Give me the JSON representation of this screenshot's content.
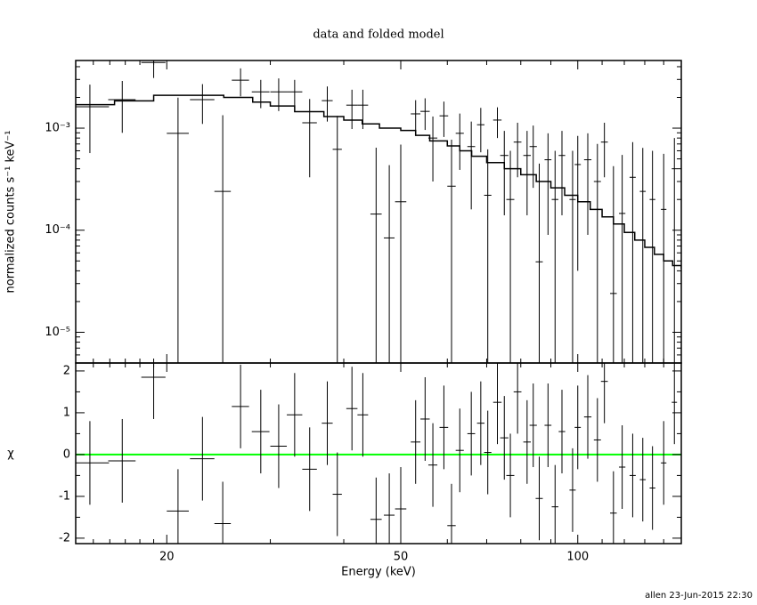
{
  "footer": "allen 23-Jun-2015 22:30",
  "chart_data": [
    {
      "type": "errorbar",
      "title": "data and folded model",
      "ylabel": "normalized counts s⁻¹ keV⁻¹",
      "xscale": "log",
      "yscale": "log",
      "color": "#000000",
      "xlim": [
        14,
        150
      ],
      "ylim": [
        5e-06,
        0.0046
      ],
      "yticks": [
        {
          "value": 1e-05,
          "label": "10⁻⁵"
        },
        {
          "value": 0.0001,
          "label": "10⁻⁴"
        },
        {
          "value": 0.001,
          "label": "10⁻³"
        }
      ],
      "yminorticks": [
        6e-06,
        7e-06,
        8e-06,
        9e-06,
        2e-05,
        3e-05,
        4e-05,
        5e-05,
        6e-05,
        7e-05,
        8e-05,
        9e-05,
        0.0002,
        0.0003,
        0.0004,
        0.0005,
        0.0006,
        0.0007,
        0.0008,
        0.0009,
        0.002,
        0.003,
        0.004
      ],
      "x": [
        14.8,
        16.8,
        19.0,
        20.9,
        23.0,
        24.9,
        26.7,
        28.9,
        31.0,
        33.0,
        35.0,
        37.5,
        39.0,
        41.3,
        43.1,
        45.4,
        47.8,
        50,
        53,
        55,
        56.7,
        59.2,
        61.0,
        63.0,
        65.9,
        68.4,
        70.3,
        73.0,
        75.0,
        76.8,
        79.0,
        82.0,
        84.0,
        86.0,
        89,
        91.5,
        94,
        98,
        100,
        104,
        108,
        111,
        115,
        119,
        124,
        129,
        134,
        140,
        146
      ],
      "xerr": [
        1.15,
        0.9,
        0.9,
        0.9,
        1.1,
        0.8,
        0.9,
        1.0,
        1.0,
        1.0,
        1.0,
        0.8,
        0.7,
        0.9,
        0.9,
        1.0,
        1.0,
        1.1,
        1.0,
        1.0,
        1.0,
        1.0,
        1.0,
        1.0,
        1.0,
        1.0,
        1.0,
        1.2,
        1.2,
        1.2,
        1.2,
        1.2,
        1.2,
        1.2,
        1.2,
        1.2,
        1.2,
        1.2,
        1.2,
        1.5,
        1.5,
        1.5,
        1.5,
        1.5,
        1.5,
        1.5,
        1.5,
        1.5,
        1.5
      ],
      "values": [
        0.00162,
        0.0019,
        0.0044,
        0.00089,
        0.0019,
        0.00024,
        0.00295,
        0.00227,
        0.00227,
        0.00227,
        0.00113,
        0.00186,
        0.00062,
        0.00168,
        0.00168,
        0.000144,
        8.4e-05,
        0.00019,
        0.00138,
        0.00146,
        0.0008,
        0.00132,
        0.00027,
        0.00089,
        0.00066,
        0.00108,
        0.00022,
        0.0012,
        0.00054,
        0.0002,
        0.00073,
        0.00054,
        0.00066,
        4.9e-05,
        0.00049,
        0.0002,
        0.00054,
        0.0002,
        0.00044,
        0.00049,
        0.0003,
        0.00073,
        2.4e-05,
        0.000146,
        0.00033,
        0.00024,
        0.0002,
        0.00016,
        0.0004
      ],
      "yerr": [
        0.00105,
        0.001,
        0.0013,
        0.0011,
        0.0008,
        0.0011,
        0.0009,
        0.0007,
        0.0008,
        0.0007,
        0.0008,
        0.0007,
        0.0007,
        0.0007,
        0.0007,
        0.0005,
        0.00035,
        0.0005,
        0.0005,
        0.0005,
        0.0005,
        0.0005,
        0.0005,
        0.0005,
        0.0005,
        0.0005,
        0.0004,
        0.0004,
        0.0004,
        0.0004,
        0.0004,
        0.0004,
        0.0004,
        0.0004,
        0.0004,
        0.0004,
        0.0004,
        0.0004,
        0.0004,
        0.0004,
        0.0004,
        0.0004,
        0.0004,
        0.0004,
        0.0004,
        0.0004,
        0.0004,
        0.0004,
        0.0004
      ],
      "model": {
        "color": "#000000",
        "x": [
          14,
          16.3,
          19,
          23,
          25,
          28,
          30,
          33,
          37,
          40,
          43,
          46,
          50,
          53,
          56,
          60,
          63,
          66,
          70,
          75,
          80,
          85,
          90,
          95,
          100,
          105,
          110,
          115,
          120,
          125,
          130,
          135,
          140,
          145,
          150
        ],
        "values": [
          0.0017,
          0.00185,
          0.0021,
          0.0021,
          0.002,
          0.0018,
          0.00165,
          0.00145,
          0.0013,
          0.0012,
          0.0011,
          0.001,
          0.00095,
          0.00085,
          0.00075,
          0.00067,
          0.0006,
          0.00053,
          0.00046,
          0.0004,
          0.00035,
          0.0003,
          0.00026,
          0.00022,
          0.00019,
          0.00016,
          0.000135,
          0.000115,
          9.5e-05,
          8e-05,
          6.8e-05,
          5.8e-05,
          5e-05,
          4.5e-05,
          4.2e-05
        ]
      }
    },
    {
      "type": "errorbar",
      "xlabel": "Energy (keV)",
      "ylabel": "χ",
      "xscale": "log",
      "yscale": "linear",
      "color": "#000000",
      "xlim": [
        14,
        150
      ],
      "ylim": [
        -2.13,
        2.19
      ],
      "xticks": [
        20,
        50,
        100
      ],
      "xminorticks": [
        14,
        15,
        16,
        17,
        18,
        19,
        30,
        40,
        60,
        70,
        80,
        90,
        110,
        120,
        130,
        140,
        150
      ],
      "yticks": [
        -2,
        -1,
        0,
        1,
        2
      ],
      "yminorticks": [
        -1.5,
        -0.5,
        0.5,
        1.5
      ],
      "reference_line": {
        "value": 0,
        "color": "#00ff00"
      },
      "x": [
        14.8,
        16.8,
        19.0,
        20.9,
        23.0,
        24.9,
        26.7,
        28.9,
        31.0,
        33.0,
        35.0,
        37.5,
        39.0,
        41.3,
        43.1,
        45.4,
        47.8,
        50,
        53,
        55,
        56.7,
        59.2,
        61.0,
        63.0,
        65.9,
        68.4,
        70.3,
        73.0,
        75.0,
        76.8,
        79.0,
        82.0,
        84.0,
        86.0,
        89,
        91.5,
        94,
        98,
        100,
        104,
        108,
        111,
        115,
        119,
        124,
        129,
        134,
        140,
        146
      ],
      "xerr": [
        1.15,
        0.9,
        0.9,
        0.9,
        1.1,
        0.8,
        0.9,
        1.0,
        1.0,
        1.0,
        1.0,
        0.8,
        0.7,
        0.9,
        0.9,
        1.0,
        1.0,
        1.1,
        1.0,
        1.0,
        1.0,
        1.0,
        1.0,
        1.0,
        1.0,
        1.0,
        1.0,
        1.2,
        1.2,
        1.2,
        1.2,
        1.2,
        1.2,
        1.2,
        1.2,
        1.2,
        1.2,
        1.2,
        1.2,
        1.5,
        1.5,
        1.5,
        1.5,
        1.5,
        1.5,
        1.5,
        1.5,
        1.5,
        1.5
      ],
      "values": [
        -0.2,
        -0.15,
        1.85,
        -1.35,
        -0.1,
        -1.65,
        1.15,
        0.55,
        0.2,
        0.95,
        -0.35,
        0.75,
        -0.95,
        1.1,
        0.95,
        -1.55,
        -1.45,
        -1.3,
        0.3,
        0.85,
        -0.25,
        0.65,
        -1.7,
        0.1,
        0.5,
        0.75,
        0.05,
        1.25,
        0.4,
        -0.5,
        1.5,
        0.3,
        0.7,
        -1.05,
        0.7,
        -1.25,
        0.55,
        -0.85,
        0.65,
        0.9,
        0.35,
        1.75,
        -1.4,
        -0.3,
        -0.5,
        -0.6,
        -0.8,
        -0.2,
        1.25
      ],
      "yerr": [
        1,
        1,
        1,
        1,
        1,
        1,
        1,
        1,
        1,
        1,
        1,
        1,
        1,
        1,
        1,
        1,
        1,
        1,
        1,
        1,
        1,
        1,
        1,
        1,
        1,
        1,
        1,
        1,
        1,
        1,
        1,
        1,
        1,
        1,
        1,
        1,
        1,
        1,
        1,
        1,
        1,
        1,
        1,
        1,
        1,
        1,
        1,
        1,
        1
      ]
    }
  ]
}
